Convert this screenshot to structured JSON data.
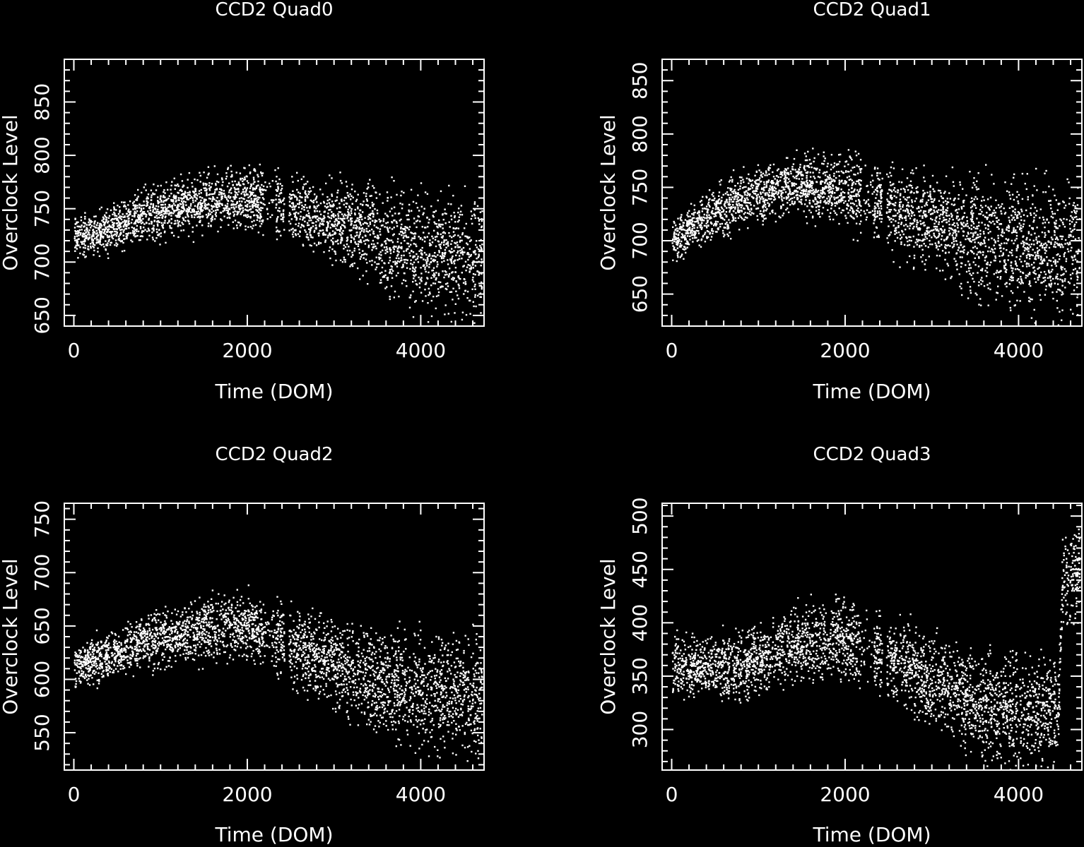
{
  "colors": {
    "background": "#000000",
    "foreground": "#ffffff"
  },
  "chart_data": [
    {
      "type": "scatter",
      "title": "CCD2 Quad0",
      "xlabel": "Time (DOM)",
      "ylabel": "Overclock Level",
      "xlim": [
        -110,
        4730
      ],
      "ylim": [
        640,
        890
      ],
      "xticks": [
        0,
        2000,
        4000
      ],
      "yticks": [
        650,
        700,
        750,
        800,
        850
      ],
      "grid": false,
      "trend": [
        [
          0,
          725
        ],
        [
          300,
          728
        ],
        [
          520,
          735
        ],
        [
          800,
          745
        ],
        [
          1200,
          752
        ],
        [
          1600,
          758
        ],
        [
          2050,
          760
        ],
        [
          2500,
          752
        ],
        [
          3000,
          740
        ],
        [
          3500,
          725
        ],
        [
          4000,
          712
        ],
        [
          4700,
          705
        ]
      ],
      "spread": [
        [
          0,
          28
        ],
        [
          500,
          30
        ],
        [
          1000,
          35
        ],
        [
          2000,
          40
        ],
        [
          3000,
          50
        ],
        [
          3500,
          65
        ],
        [
          4000,
          75
        ],
        [
          4700,
          80
        ]
      ]
    },
    {
      "type": "scatter",
      "title": "CCD2 Quad1",
      "xlabel": "Time (DOM)",
      "ylabel": "Overclock Level",
      "xlim": [
        -110,
        4730
      ],
      "ylim": [
        620,
        870
      ],
      "xticks": [
        0,
        2000,
        4000
      ],
      "yticks": [
        650,
        700,
        750,
        800,
        850
      ],
      "grid": false,
      "trend": [
        [
          0,
          700
        ],
        [
          300,
          718
        ],
        [
          700,
          735
        ],
        [
          1200,
          748
        ],
        [
          1600,
          752
        ],
        [
          2100,
          745
        ],
        [
          2500,
          730
        ],
        [
          3000,
          718
        ],
        [
          3500,
          705
        ],
        [
          4000,
          695
        ],
        [
          4700,
          690
        ]
      ],
      "spread": [
        [
          0,
          28
        ],
        [
          800,
          35
        ],
        [
          2000,
          45
        ],
        [
          3000,
          60
        ],
        [
          3500,
          75
        ],
        [
          4000,
          85
        ],
        [
          4700,
          88
        ]
      ]
    },
    {
      "type": "scatter",
      "title": "CCD2 Quad2",
      "xlabel": "Time (DOM)",
      "ylabel": "Overclock Level",
      "xlim": [
        -110,
        4730
      ],
      "ylim": [
        515,
        765
      ],
      "xticks": [
        0,
        2000,
        4000
      ],
      "yticks": [
        550,
        600,
        650,
        700,
        750
      ],
      "grid": false,
      "trend": [
        [
          0,
          612
        ],
        [
          500,
          625
        ],
        [
          1000,
          640
        ],
        [
          1500,
          648
        ],
        [
          2050,
          650
        ],
        [
          2500,
          630
        ],
        [
          3000,
          615
        ],
        [
          3500,
          598
        ],
        [
          4000,
          588
        ],
        [
          4700,
          585
        ]
      ],
      "spread": [
        [
          0,
          28
        ],
        [
          1000,
          38
        ],
        [
          2000,
          42
        ],
        [
          3000,
          55
        ],
        [
          3500,
          70
        ],
        [
          4000,
          80
        ],
        [
          4700,
          80
        ]
      ]
    },
    {
      "type": "scatter",
      "title": "CCD2 Quad3",
      "xlabel": "Time (DOM)",
      "ylabel": "Overclock Level",
      "xlim": [
        -110,
        4730
      ],
      "ylim": [
        262,
        512
      ],
      "xticks": [
        0,
        2000,
        4000
      ],
      "yticks": [
        300,
        350,
        400,
        450,
        500
      ],
      "grid": false,
      "trend": [
        [
          0,
          360
        ],
        [
          800,
          358
        ],
        [
          1400,
          380
        ],
        [
          2000,
          385
        ],
        [
          2500,
          365
        ],
        [
          3000,
          345
        ],
        [
          3500,
          325
        ],
        [
          4000,
          315
        ],
        [
          4450,
          320
        ],
        [
          4500,
          440
        ],
        [
          4730,
          450
        ]
      ],
      "spread": [
        [
          0,
          40
        ],
        [
          1000,
          45
        ],
        [
          2000,
          50
        ],
        [
          3000,
          60
        ],
        [
          4000,
          70
        ],
        [
          4450,
          65
        ],
        [
          4500,
          60
        ],
        [
          4730,
          60
        ]
      ]
    }
  ]
}
